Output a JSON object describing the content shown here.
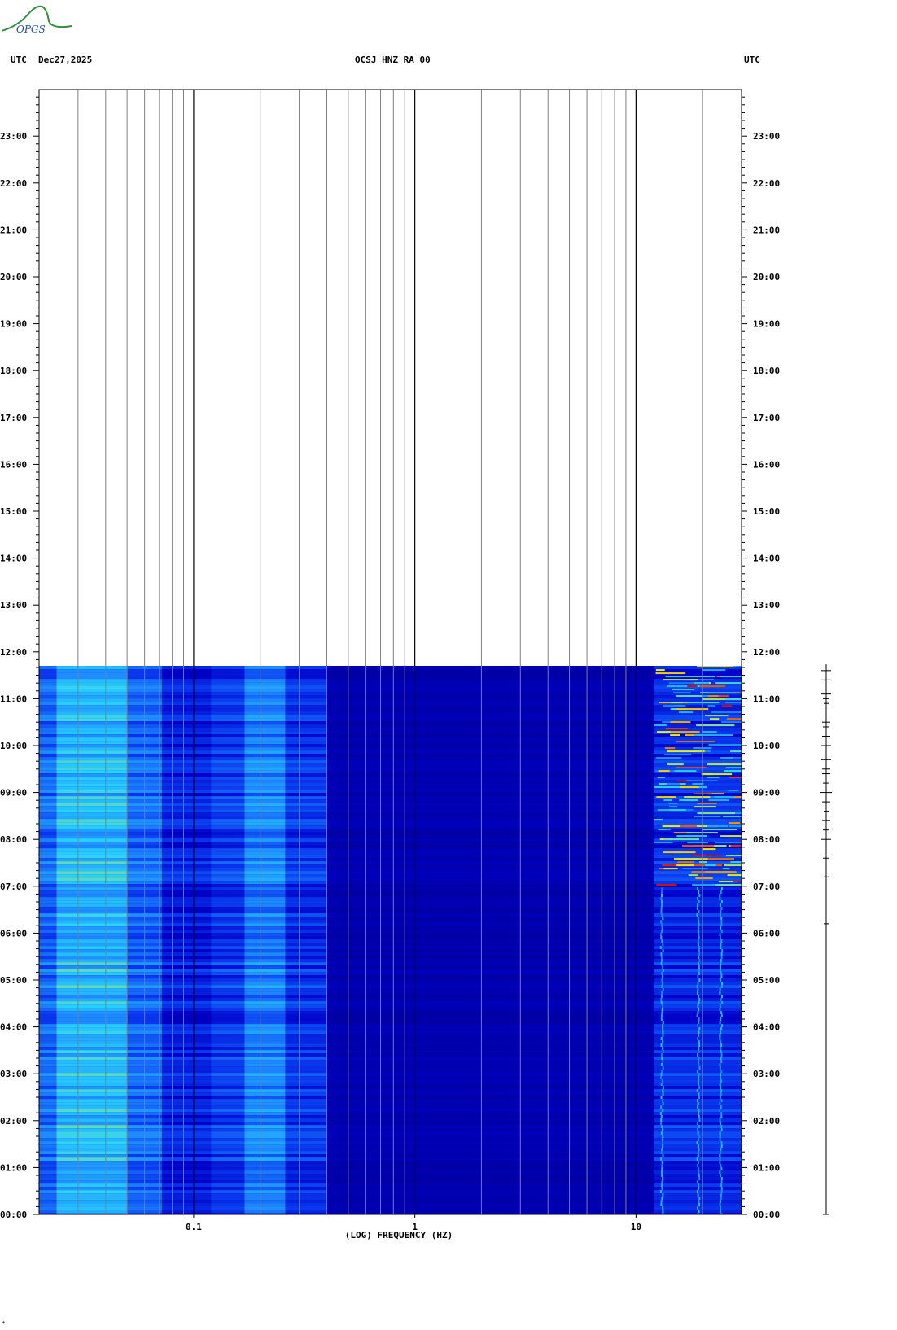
{
  "header": {
    "left_tz": "UTC",
    "date": "Dec27,2025",
    "station": "OCSJ HNZ RA 00",
    "right_tz": "UTC"
  },
  "logo": {
    "text": "OPGS",
    "colors": [
      "#2f8f3f",
      "#1f4fa8"
    ]
  },
  "footer_mark": "*",
  "chart_data": {
    "type": "heatmap",
    "title": "OCSJ HNZ RA 00",
    "xlabel": "(LOG) FREQUENCY (HZ)",
    "ylabel": "UTC",
    "x_scale": "log",
    "xlim": [
      0.02,
      30
    ],
    "x_ticks": [
      {
        "value": 0.1,
        "label": "0.1"
      },
      {
        "value": 1,
        "label": "1"
      },
      {
        "value": 10,
        "label": "10"
      }
    ],
    "x_gridlines": [
      0.03,
      0.04,
      0.05,
      0.06,
      0.07,
      0.08,
      0.09,
      0.1,
      0.2,
      0.3,
      0.4,
      0.5,
      0.6,
      0.7,
      0.8,
      0.9,
      1,
      2,
      3,
      4,
      5,
      6,
      7,
      8,
      9,
      10,
      20
    ],
    "y_ticks": [
      "00:00",
      "01:00",
      "02:00",
      "03:00",
      "04:00",
      "05:00",
      "06:00",
      "07:00",
      "08:00",
      "09:00",
      "10:00",
      "11:00",
      "12:00",
      "13:00",
      "14:00",
      "15:00",
      "16:00",
      "17:00",
      "18:00",
      "19:00",
      "20:00",
      "21:00",
      "22:00",
      "23:00"
    ],
    "ylim_hours": [
      0,
      24
    ],
    "data_end_hour": 11.7,
    "colormap": [
      "#00008c",
      "#0000c8",
      "#0a3cf0",
      "#1e8cff",
      "#28d2ff",
      "#f5f000",
      "#dc0000"
    ],
    "frequency_bands": [
      {
        "f_lo": 0.02,
        "f_hi": 0.024,
        "level": 0.42
      },
      {
        "f_lo": 0.024,
        "f_hi": 0.05,
        "level": 0.6
      },
      {
        "f_lo": 0.05,
        "f_hi": 0.072,
        "level": 0.42
      },
      {
        "f_lo": 0.072,
        "f_hi": 0.12,
        "level": 0.25
      },
      {
        "f_lo": 0.12,
        "f_hi": 0.17,
        "level": 0.32
      },
      {
        "f_lo": 0.17,
        "f_hi": 0.26,
        "level": 0.48
      },
      {
        "f_lo": 0.26,
        "f_hi": 0.4,
        "level": 0.3
      },
      {
        "f_lo": 0.4,
        "f_hi": 12,
        "level": 0.1
      },
      {
        "f_lo": 12,
        "f_hi": 30,
        "level": 0.28
      }
    ],
    "high_energy_interval_hours": [
      7.0,
      11.7
    ],
    "trace_ticks_hours": [
      11.6,
      11.4,
      11.1,
      11.0,
      10.9,
      10.5,
      10.4,
      10.2,
      10.0,
      9.7,
      9.5,
      9.4,
      9.2,
      9.0,
      8.8,
      8.6,
      8.4,
      8.2,
      8.0,
      7.6,
      7.2,
      6.2,
      0.0
    ]
  }
}
